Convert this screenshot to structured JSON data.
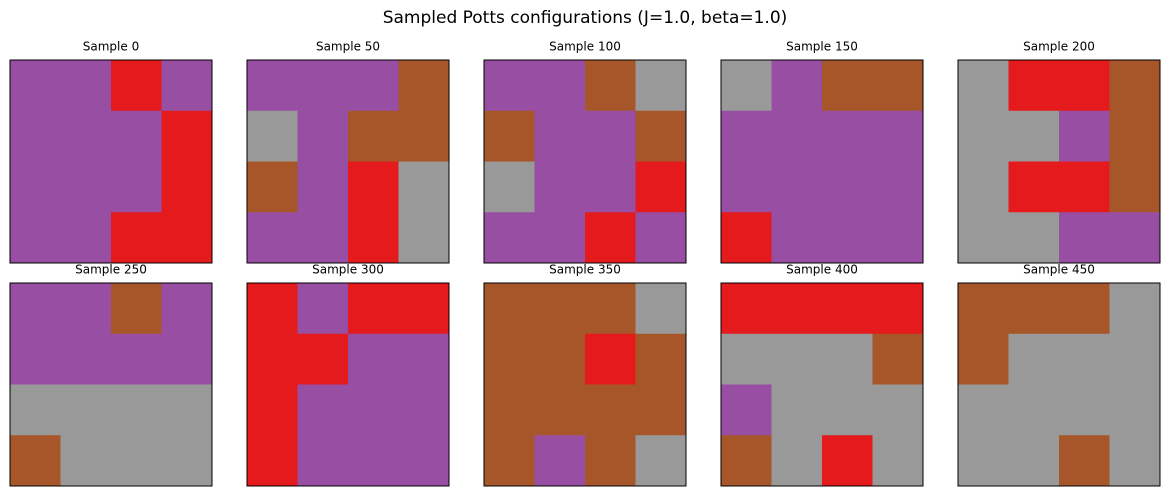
{
  "chart_data": {
    "type": "heatmap",
    "title": "Sampled Potts configurations (J=1.0, beta=1.0)",
    "colors": [
      "#e41a1c",
      "#984ea3",
      "#a65628",
      "#999999"
    ],
    "panels": [
      {
        "title": "Sample 0",
        "values": [
          [
            1,
            1,
            0,
            1
          ],
          [
            1,
            1,
            1,
            0
          ],
          [
            1,
            1,
            1,
            0
          ],
          [
            1,
            1,
            0,
            0
          ]
        ]
      },
      {
        "title": "Sample 50",
        "values": [
          [
            1,
            1,
            1,
            2
          ],
          [
            3,
            1,
            2,
            2
          ],
          [
            2,
            1,
            0,
            3
          ],
          [
            1,
            1,
            0,
            3
          ]
        ]
      },
      {
        "title": "Sample 100",
        "values": [
          [
            1,
            1,
            2,
            3
          ],
          [
            2,
            1,
            1,
            2
          ],
          [
            3,
            1,
            1,
            0
          ],
          [
            1,
            1,
            0,
            1
          ]
        ]
      },
      {
        "title": "Sample 150",
        "values": [
          [
            3,
            1,
            2,
            2
          ],
          [
            1,
            1,
            1,
            1
          ],
          [
            1,
            1,
            1,
            1
          ],
          [
            0,
            1,
            1,
            1
          ]
        ]
      },
      {
        "title": "Sample 200",
        "values": [
          [
            3,
            0,
            0,
            2
          ],
          [
            3,
            3,
            1,
            2
          ],
          [
            3,
            0,
            0,
            2
          ],
          [
            3,
            3,
            1,
            1
          ]
        ]
      },
      {
        "title": "Sample 250",
        "values": [
          [
            1,
            1,
            2,
            1
          ],
          [
            1,
            1,
            1,
            1
          ],
          [
            3,
            3,
            3,
            3
          ],
          [
            2,
            3,
            3,
            3
          ]
        ]
      },
      {
        "title": "Sample 300",
        "values": [
          [
            0,
            1,
            0,
            0
          ],
          [
            0,
            0,
            1,
            1
          ],
          [
            0,
            1,
            1,
            1
          ],
          [
            0,
            1,
            1,
            1
          ]
        ]
      },
      {
        "title": "Sample 350",
        "values": [
          [
            2,
            2,
            2,
            3
          ],
          [
            2,
            2,
            0,
            2
          ],
          [
            2,
            2,
            2,
            2
          ],
          [
            2,
            1,
            2,
            3
          ]
        ]
      },
      {
        "title": "Sample 400",
        "values": [
          [
            0,
            0,
            0,
            0
          ],
          [
            3,
            3,
            3,
            2
          ],
          [
            1,
            3,
            3,
            3
          ],
          [
            2,
            3,
            0,
            3
          ]
        ]
      },
      {
        "title": "Sample 450",
        "values": [
          [
            2,
            2,
            2,
            3
          ],
          [
            2,
            3,
            3,
            3
          ],
          [
            3,
            3,
            3,
            3
          ],
          [
            3,
            3,
            2,
            3
          ]
        ]
      }
    ]
  }
}
